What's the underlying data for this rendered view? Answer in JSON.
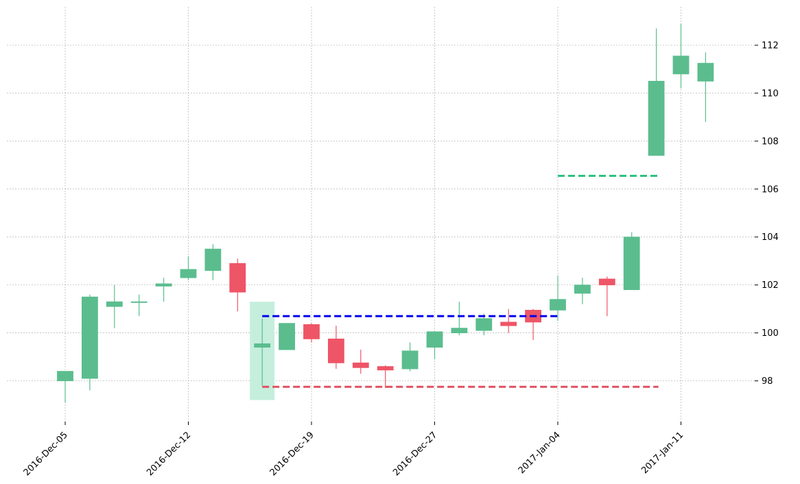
{
  "chart_data": {
    "type": "candlestick",
    "x_tick_labels": [
      "2016-Dec-05",
      "2016-Dec-12",
      "2016-Dec-19",
      "2016-Dec-27",
      "2017-Jan-04",
      "2017-Jan-11"
    ],
    "x_tick_indices": [
      0,
      5,
      10,
      15,
      20,
      25
    ],
    "ylim": [
      96.3,
      113.6
    ],
    "y_ticks": [
      98,
      100,
      102,
      104,
      106,
      108,
      110,
      112
    ],
    "grid": true,
    "y_axis_side": "right",
    "colors": {
      "up": "#5bbd8e",
      "down": "#ee5566",
      "highlight": "#c5eedd",
      "line_blue": "#0000ee",
      "line_red": "#e05060",
      "line_green": "#2ec27e"
    },
    "candles": [
      {
        "index": 0,
        "open": 98.0,
        "high": 98.4,
        "low": 97.1,
        "close": 98.4
      },
      {
        "index": 1,
        "open": 98.1,
        "high": 101.6,
        "low": 97.6,
        "close": 101.5
      },
      {
        "index": 2,
        "open": 101.1,
        "high": 102.0,
        "low": 100.2,
        "close": 101.3
      },
      {
        "index": 3,
        "open": 101.3,
        "high": 101.6,
        "low": 100.7,
        "close": 101.3
      },
      {
        "index": 4,
        "open": 101.95,
        "high": 102.3,
        "low": 101.3,
        "close": 102.05
      },
      {
        "index": 5,
        "open": 102.3,
        "high": 103.2,
        "low": 102.2,
        "close": 102.65
      },
      {
        "index": 6,
        "open": 102.6,
        "high": 103.7,
        "low": 102.2,
        "close": 103.5
      },
      {
        "index": 7,
        "open": 102.9,
        "high": 103.1,
        "low": 100.9,
        "close": 101.7
      },
      {
        "index": 8,
        "open": 99.4,
        "high": 100.6,
        "low": 97.8,
        "close": 99.55
      },
      {
        "index": 9,
        "open": 99.3,
        "high": 100.4,
        "low": 99.3,
        "close": 100.4
      },
      {
        "index": 10,
        "open": 100.35,
        "high": 100.4,
        "low": 99.6,
        "close": 99.75
      },
      {
        "index": 11,
        "open": 99.75,
        "high": 100.3,
        "low": 98.5,
        "close": 98.75
      },
      {
        "index": 12,
        "open": 98.75,
        "high": 99.3,
        "low": 98.3,
        "close": 98.55
      },
      {
        "index": 13,
        "open": 98.6,
        "high": 98.65,
        "low": 97.7,
        "close": 98.45
      },
      {
        "index": 14,
        "open": 98.5,
        "high": 99.6,
        "low": 98.4,
        "close": 99.25
      },
      {
        "index": 15,
        "open": 99.4,
        "high": 100.0,
        "low": 98.9,
        "close": 100.05
      },
      {
        "index": 16,
        "open": 100.0,
        "high": 101.3,
        "low": 99.9,
        "close": 100.2
      },
      {
        "index": 17,
        "open": 100.1,
        "high": 100.8,
        "low": 99.9,
        "close": 100.6
      },
      {
        "index": 18,
        "open": 100.45,
        "high": 101.0,
        "low": 100.0,
        "close": 100.3
      },
      {
        "index": 19,
        "open": 100.95,
        "high": 101.0,
        "low": 99.7,
        "close": 100.45
      },
      {
        "index": 20,
        "open": 100.95,
        "high": 102.4,
        "low": 100.5,
        "close": 101.4
      },
      {
        "index": 21,
        "open": 101.65,
        "high": 102.3,
        "low": 101.2,
        "close": 102.0
      },
      {
        "index": 22,
        "open": 102.25,
        "high": 102.35,
        "low": 100.7,
        "close": 102.0
      },
      {
        "index": 23,
        "open": 101.8,
        "high": 104.2,
        "low": 101.8,
        "close": 104.0
      },
      {
        "index": 24,
        "open": 107.4,
        "high": 112.7,
        "low": 107.4,
        "close": 110.5
      },
      {
        "index": 25,
        "open": 110.8,
        "high": 112.9,
        "low": 110.2,
        "close": 111.55
      },
      {
        "index": 26,
        "open": 110.5,
        "high": 111.7,
        "low": 108.8,
        "close": 111.25
      }
    ],
    "highlight_band": {
      "index": 8,
      "low": 97.2,
      "high": 101.3
    },
    "levels": [
      {
        "color": "line_blue",
        "value": 100.7,
        "from": 8,
        "to": 20
      },
      {
        "color": "line_red",
        "value": 97.75,
        "from": 8,
        "to": 24
      },
      {
        "color": "line_green",
        "value": 106.55,
        "from": 20,
        "to": 24
      }
    ]
  }
}
